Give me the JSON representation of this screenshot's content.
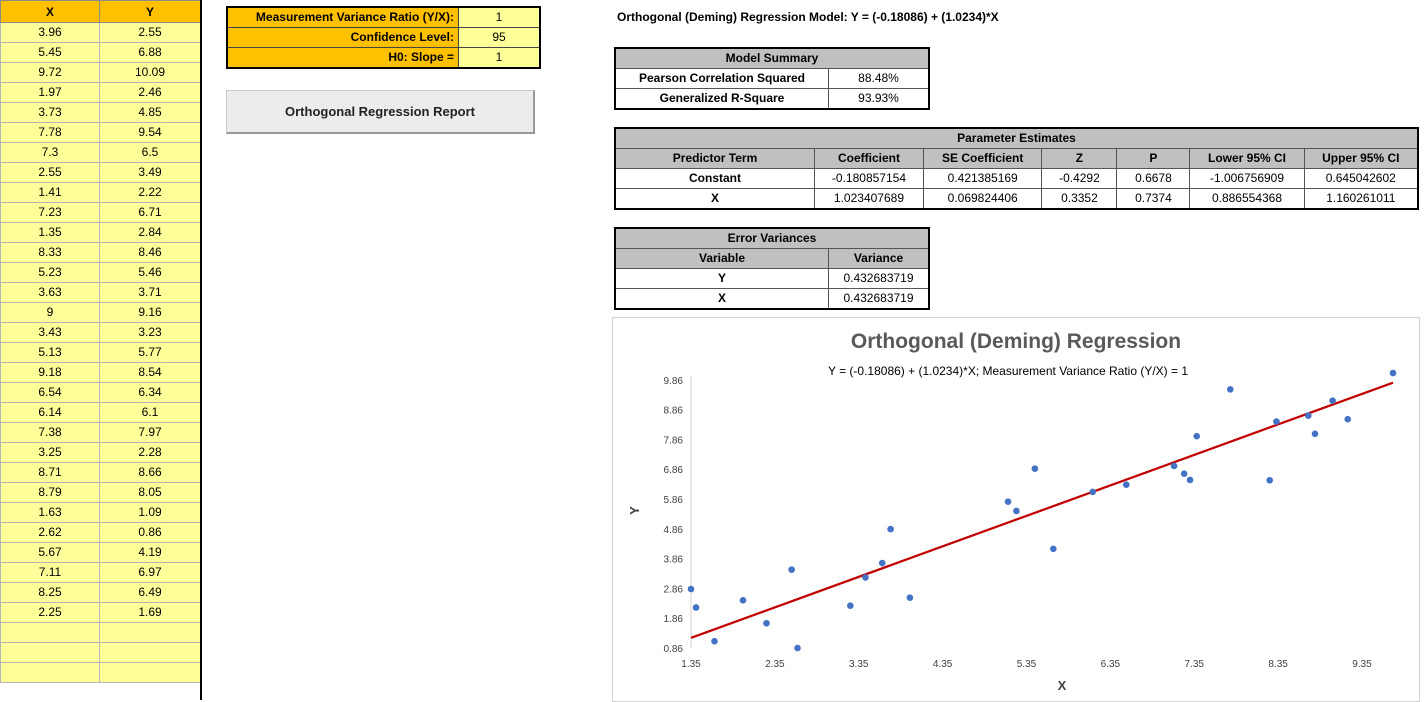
{
  "columns": {
    "x_header": "X",
    "y_header": "Y"
  },
  "rows": [
    [
      "3.96",
      "2.55"
    ],
    [
      "5.45",
      "6.88"
    ],
    [
      "9.72",
      "10.09"
    ],
    [
      "1.97",
      "2.46"
    ],
    [
      "3.73",
      "4.85"
    ],
    [
      "7.78",
      "9.54"
    ],
    [
      "7.3",
      "6.5"
    ],
    [
      "2.55",
      "3.49"
    ],
    [
      "1.41",
      "2.22"
    ],
    [
      "7.23",
      "6.71"
    ],
    [
      "1.35",
      "2.84"
    ],
    [
      "8.33",
      "8.46"
    ],
    [
      "5.23",
      "5.46"
    ],
    [
      "3.63",
      "3.71"
    ],
    [
      "9",
      "9.16"
    ],
    [
      "3.43",
      "3.23"
    ],
    [
      "5.13",
      "5.77"
    ],
    [
      "9.18",
      "8.54"
    ],
    [
      "6.54",
      "6.34"
    ],
    [
      "6.14",
      "6.1"
    ],
    [
      "7.38",
      "7.97"
    ],
    [
      "3.25",
      "2.28"
    ],
    [
      "8.71",
      "8.66"
    ],
    [
      "8.79",
      "8.05"
    ],
    [
      "1.63",
      "1.09"
    ],
    [
      "2.62",
      "0.86"
    ],
    [
      "5.67",
      "4.19"
    ],
    [
      "7.11",
      "6.97"
    ],
    [
      "8.25",
      "6.49"
    ],
    [
      "2.25",
      "1.69"
    ]
  ],
  "params": {
    "ratio_label": "Measurement Variance Ratio (Y/X):",
    "ratio_value": "1",
    "conf_label": "Confidence Level:",
    "conf_value": "95",
    "h0_label": "H0: Slope =",
    "h0_value": "1"
  },
  "report_button": "Orthogonal Regression Report",
  "model_title": "Orthogonal (Deming) Regression Model: Y = (-0.18086) + (1.0234)*X",
  "summary": {
    "title": "Model Summary",
    "rows": [
      {
        "label": "Pearson Correlation Squared",
        "value": "88.48%"
      },
      {
        "label": "Generalized R-Square",
        "value": "93.93%"
      }
    ]
  },
  "estimates": {
    "title": "Parameter Estimates",
    "headers": [
      "Predictor Term",
      "Coefficient",
      "SE Coefficient",
      "Z",
      "P",
      "Lower 95% CI",
      "Upper 95% CI"
    ],
    "rows": [
      [
        "Constant",
        "-0.180857154",
        "0.421385169",
        "-0.4292",
        "0.6678",
        "-1.006756909",
        "0.645042602"
      ],
      [
        "X",
        "1.023407689",
        "0.069824406",
        "0.3352",
        "0.7374",
        "0.886554368",
        "1.160261011"
      ]
    ]
  },
  "error_variances": {
    "title": "Error Variances",
    "headers": [
      "Variable",
      "Variance"
    ],
    "rows": [
      [
        "Y",
        "0.432683719"
      ],
      [
        "X",
        "0.432683719"
      ]
    ]
  },
  "colors": {
    "points": "#4472c4",
    "fit_line": "#c00000",
    "header_fill": "#ffc000",
    "cell_fill": "#ffff99"
  },
  "chart_data": {
    "type": "scatter",
    "title": "Orthogonal (Deming) Regression",
    "subtitle": "Y = (-0.18086) + (1.0234)*X; Measurement Variance Ratio (Y/X) = 1",
    "xlabel": "X",
    "ylabel": "Y",
    "x_ticks": [
      "1.35",
      "2.35",
      "3.35",
      "4.35",
      "5.35",
      "6.35",
      "7.35",
      "8.35",
      "9.35"
    ],
    "y_ticks": [
      "0.86",
      "1.86",
      "2.86",
      "3.86",
      "4.86",
      "5.86",
      "6.86",
      "7.86",
      "8.86",
      "9.86"
    ],
    "xlim": [
      1.35,
      9.72
    ],
    "ylim": [
      0.86,
      10.09
    ],
    "x": [
      3.96,
      5.45,
      9.72,
      1.97,
      3.73,
      7.78,
      7.3,
      2.55,
      1.41,
      7.23,
      1.35,
      8.33,
      5.23,
      3.63,
      9,
      3.43,
      5.13,
      9.18,
      6.54,
      6.14,
      7.38,
      3.25,
      8.71,
      8.79,
      1.63,
      2.62,
      5.67,
      7.11,
      8.25,
      2.25
    ],
    "y": [
      2.55,
      6.88,
      10.09,
      2.46,
      4.85,
      9.54,
      6.5,
      3.49,
      2.22,
      6.71,
      2.84,
      8.46,
      5.46,
      3.71,
      9.16,
      3.23,
      5.77,
      8.54,
      6.34,
      6.1,
      7.97,
      2.28,
      8.66,
      8.05,
      1.09,
      0.86,
      4.19,
      6.97,
      6.49,
      1.69
    ],
    "fit_line": {
      "intercept": -0.18086,
      "slope": 1.0234,
      "x_range": [
        1.35,
        9.72
      ]
    },
    "grid": false,
    "legend": "none"
  }
}
